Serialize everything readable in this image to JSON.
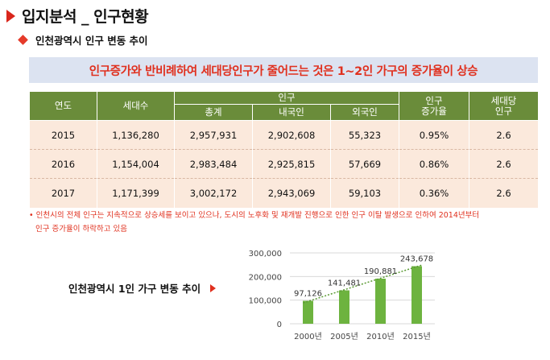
{
  "title": "입지분석 _ 인구현황",
  "subtitle": "인천광역시 인구 변동 추이",
  "banner": "인구증가와 반비례하여 세대당인구가 줄어드는 것은 1~2인 가구의 증가율이 상승",
  "table": {
    "headers": {
      "year": "연도",
      "households": "세대수",
      "population": "인구",
      "total": "총계",
      "native": "내국인",
      "foreign": "외국인",
      "growth": "인구\n증가율",
      "per_household": "세대당\n인구"
    },
    "rows": [
      {
        "year": "2015",
        "households": "1,136,280",
        "total": "2,957,931",
        "native": "2,902,608",
        "foreign": "55,323",
        "growth": "0.95%",
        "per_household": "2.6"
      },
      {
        "year": "2016",
        "households": "1,154,004",
        "total": "2,983,484",
        "native": "2,925,815",
        "foreign": "57,669",
        "growth": "0.86%",
        "per_household": "2.6"
      },
      {
        "year": "2017",
        "households": "1,171,399",
        "total": "3,002,172",
        "native": "2,943,069",
        "foreign": "59,103",
        "growth": "0.36%",
        "per_household": "2.6"
      }
    ]
  },
  "note_line1": "• 인천시의 전체 인구는 지속적으로 상승세를 보이고 있으나, 도시의 노후화 및 재개발 진행으로 인한 인구 이탈 발생으로 인하여 2014년부터",
  "note_line2": "인구 증가율이 하락하고 있음",
  "chart_label": "인천광역시 1인 가구 변동 추이",
  "chart_data": {
    "type": "bar",
    "title": "인천광역시 1인 가구 변동 추이",
    "categories": [
      "2000년",
      "2005년",
      "2010년",
      "2015년"
    ],
    "values": [
      97126,
      141481,
      190881,
      243678
    ],
    "value_labels": [
      "97,126",
      "141,481",
      "190,881",
      "243,678"
    ],
    "y_ticks": [
      0,
      100000,
      200000,
      300000
    ],
    "y_tick_labels": [
      "0",
      "100,000",
      "200,000",
      "300,000"
    ],
    "ylim": [
      0,
      300000
    ],
    "trendline": true,
    "bar_color": "#6db33f",
    "trend_color": "#5a9a32"
  }
}
